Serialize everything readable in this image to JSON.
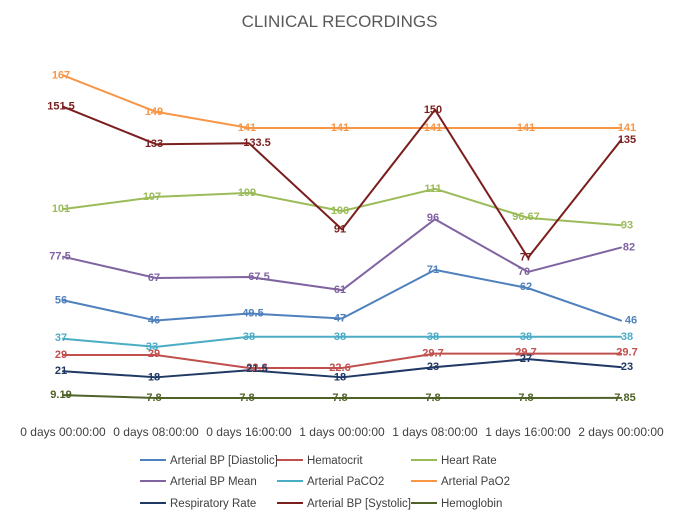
{
  "chart_data": {
    "type": "line",
    "title": "CLINICAL RECORDINGS",
    "xlabel": "",
    "ylabel": "",
    "ylim": [
      0,
      175
    ],
    "grid": false,
    "legend_position": "bottom",
    "categories": [
      "0 days 00:00:00",
      "0 days 08:00:00",
      "0 days 16:00:00",
      "1 days 00:00:00",
      "1 days 08:00:00",
      "1 days 16:00:00",
      "2 days 00:00:00"
    ],
    "series": [
      {
        "name": "Arterial BP [Diastolic]",
        "color": "#4f81bd",
        "values": [
          56,
          46,
          49.5,
          47,
          71,
          62,
          46
        ],
        "labels": [
          "56",
          "46",
          "49.5",
          "47",
          "71",
          "62",
          "46"
        ]
      },
      {
        "name": "Hematocrit",
        "color": "#c0504d",
        "values": [
          29,
          29,
          22.6,
          22.6,
          29.7,
          29.7,
          29.7
        ],
        "labels": [
          "29",
          "29",
          "22.6",
          "22.6",
          "29.7",
          "29.7",
          "29.7"
        ]
      },
      {
        "name": "Heart Rate",
        "color": "#9bbb59",
        "values": [
          101,
          107,
          109,
          100,
          111,
          96.67,
          93
        ],
        "labels": [
          "101",
          "107",
          "109",
          "100",
          "111",
          "96.67",
          "93"
        ]
      },
      {
        "name": "Arterial BP Mean",
        "color": "#8064a2",
        "values": [
          77.5,
          67,
          67.5,
          61,
          96,
          70,
          82
        ],
        "labels": [
          "77.5",
          "67",
          "67.5",
          "61",
          "96",
          "70",
          "82"
        ]
      },
      {
        "name": "Arterial PaCO2",
        "color": "#4bacc6",
        "values": [
          37,
          33,
          38,
          38,
          38,
          38,
          38
        ],
        "labels": [
          "37",
          "33",
          "38",
          "38",
          "38",
          "38",
          "38"
        ]
      },
      {
        "name": "Arterial PaO2",
        "color": "#f79646",
        "values": [
          167,
          149,
          141,
          141,
          141,
          141,
          141
        ],
        "labels": [
          "167",
          "149",
          "141",
          "141",
          "141",
          "141",
          "141"
        ]
      },
      {
        "name": "Respiratory Rate",
        "color": "#1f3864",
        "values": [
          21,
          18,
          21.5,
          18,
          23,
          27,
          23
        ],
        "labels": [
          "21",
          "18",
          "21.5",
          "18",
          "23",
          "27",
          "23"
        ]
      },
      {
        "name": "Arterial BP [Systolic]",
        "color": "#7b1e1e",
        "values": [
          151.5,
          133,
          133.5,
          91,
          150,
          77,
          135
        ],
        "labels": [
          "151.5",
          "133",
          "133.5",
          "91",
          "150",
          "77",
          "135"
        ]
      },
      {
        "name": "Hemoglobin",
        "color": "#4f6228",
        "values": [
          9.19,
          7.8,
          7.8,
          7.8,
          7.8,
          7.8,
          7.85
        ],
        "labels": [
          "9.19",
          "7.8",
          "7.8",
          "7.8",
          "7.8",
          "7.8",
          "7.85"
        ]
      }
    ]
  }
}
